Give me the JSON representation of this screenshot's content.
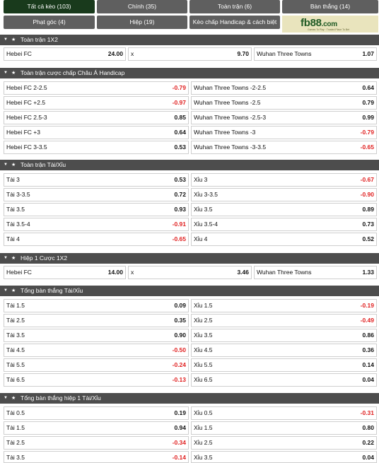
{
  "tabs": [
    {
      "label": "Tất cả kèo (103)",
      "active": true
    },
    {
      "label": "Chính (35)",
      "active": false
    },
    {
      "label": "Toàn trận (6)",
      "active": false
    },
    {
      "label": "Bàn thắng (14)",
      "active": false
    },
    {
      "label": "Phạt góc (4)",
      "active": false
    },
    {
      "label": "Hiệp (19)",
      "active": false
    },
    {
      "label": "Kèo chấp Handicap & cách biệt (5)",
      "active": false
    }
  ],
  "logo": {
    "brand_a": "fb",
    "brand_b": "88",
    "brand_c": ".com",
    "slogan": "Games To Play · Trusted Place To Bet"
  },
  "sections": {
    "s1": {
      "title": "Toàn trận 1X2",
      "cells": [
        {
          "label": "Hebei FC",
          "odd": "24.00"
        },
        {
          "label": "x",
          "odd": "9.70"
        },
        {
          "label": "Wuhan Three Towns",
          "odd": "1.07"
        }
      ]
    },
    "s2": {
      "title": "Toàn trận cược chấp Châu Á Handicap",
      "rows": [
        [
          {
            "label": "Hebei FC 2-2.5",
            "odd": "-0.79"
          },
          {
            "label": "Wuhan Three Towns -2-2.5",
            "odd": "0.64"
          }
        ],
        [
          {
            "label": "Hebei FC +2.5",
            "odd": "-0.97"
          },
          {
            "label": "Wuhan Three Towns -2.5",
            "odd": "0.79"
          }
        ],
        [
          {
            "label": "Hebei FC 2.5-3",
            "odd": "0.85"
          },
          {
            "label": "Wuhan Three Towns -2.5-3",
            "odd": "0.99"
          }
        ],
        [
          {
            "label": "Hebei FC +3",
            "odd": "0.64"
          },
          {
            "label": "Wuhan Three Towns -3",
            "odd": "-0.79"
          }
        ],
        [
          {
            "label": "Hebei FC 3-3.5",
            "odd": "0.53"
          },
          {
            "label": "Wuhan Three Towns -3-3.5",
            "odd": "-0.65"
          }
        ]
      ]
    },
    "s3": {
      "title": "Toàn trận Tài/Xỉu",
      "rows": [
        [
          {
            "label": "Tài 3",
            "odd": "0.53"
          },
          {
            "label": "Xỉu 3",
            "odd": "-0.67"
          }
        ],
        [
          {
            "label": "Tài 3-3.5",
            "odd": "0.72"
          },
          {
            "label": "Xỉu 3-3.5",
            "odd": "-0.90"
          }
        ],
        [
          {
            "label": "Tài 3.5",
            "odd": "0.93"
          },
          {
            "label": "Xỉu 3.5",
            "odd": "0.89"
          }
        ],
        [
          {
            "label": "Tài 3.5-4",
            "odd": "-0.91"
          },
          {
            "label": "Xỉu 3.5-4",
            "odd": "0.73"
          }
        ],
        [
          {
            "label": "Tài 4",
            "odd": "-0.65"
          },
          {
            "label": "Xỉu 4",
            "odd": "0.52"
          }
        ]
      ]
    },
    "s4": {
      "title": "Hiệp 1 Cược 1X2",
      "cells": [
        {
          "label": "Hebei FC",
          "odd": "14.00"
        },
        {
          "label": "x",
          "odd": "3.46"
        },
        {
          "label": "Wuhan Three Towns",
          "odd": "1.33"
        }
      ]
    },
    "s5": {
      "title": "Tổng bàn thắng Tài/Xỉu",
      "rows": [
        [
          {
            "label": "Tài 1.5",
            "odd": "0.09"
          },
          {
            "label": "Xỉu 1.5",
            "odd": "-0.19"
          }
        ],
        [
          {
            "label": "Tài 2.5",
            "odd": "0.35"
          },
          {
            "label": "Xỉu 2.5",
            "odd": "-0.49"
          }
        ],
        [
          {
            "label": "Tài 3.5",
            "odd": "0.90"
          },
          {
            "label": "Xỉu 3.5",
            "odd": "0.86"
          }
        ],
        [
          {
            "label": "Tài 4.5",
            "odd": "-0.50"
          },
          {
            "label": "Xỉu 4.5",
            "odd": "0.36"
          }
        ],
        [
          {
            "label": "Tài 5.5",
            "odd": "-0.24"
          },
          {
            "label": "Xỉu 5.5",
            "odd": "0.14"
          }
        ],
        [
          {
            "label": "Tài 6.5",
            "odd": "-0.13"
          },
          {
            "label": "Xỉu 6.5",
            "odd": "0.04"
          }
        ]
      ]
    },
    "s6": {
      "title": "Tổng bàn thắng hiệp 1 Tài/Xỉu",
      "rows": [
        [
          {
            "label": "Tài 0.5",
            "odd": "0.19"
          },
          {
            "label": "Xỉu 0.5",
            "odd": "-0.31"
          }
        ],
        [
          {
            "label": "Tài 1.5",
            "odd": "0.94"
          },
          {
            "label": "Xỉu 1.5",
            "odd": "0.80"
          }
        ],
        [
          {
            "label": "Tài 2.5",
            "odd": "-0.34"
          },
          {
            "label": "Xỉu 2.5",
            "odd": "0.22"
          }
        ],
        [
          {
            "label": "Tài 3.5",
            "odd": "-0.14"
          },
          {
            "label": "Xỉu 3.5",
            "odd": "0.04"
          }
        ]
      ]
    }
  },
  "icons": {
    "collapse": "chevron-down-icon",
    "favorite": "star-icon"
  },
  "colors": {
    "tab_active": "#193a1c",
    "tab": "#5f5f5f",
    "section_header": "#4d4d4d",
    "negative": "#e02020",
    "logo_bg": "#e9e4bd",
    "logo_text": "#1f5a24"
  }
}
